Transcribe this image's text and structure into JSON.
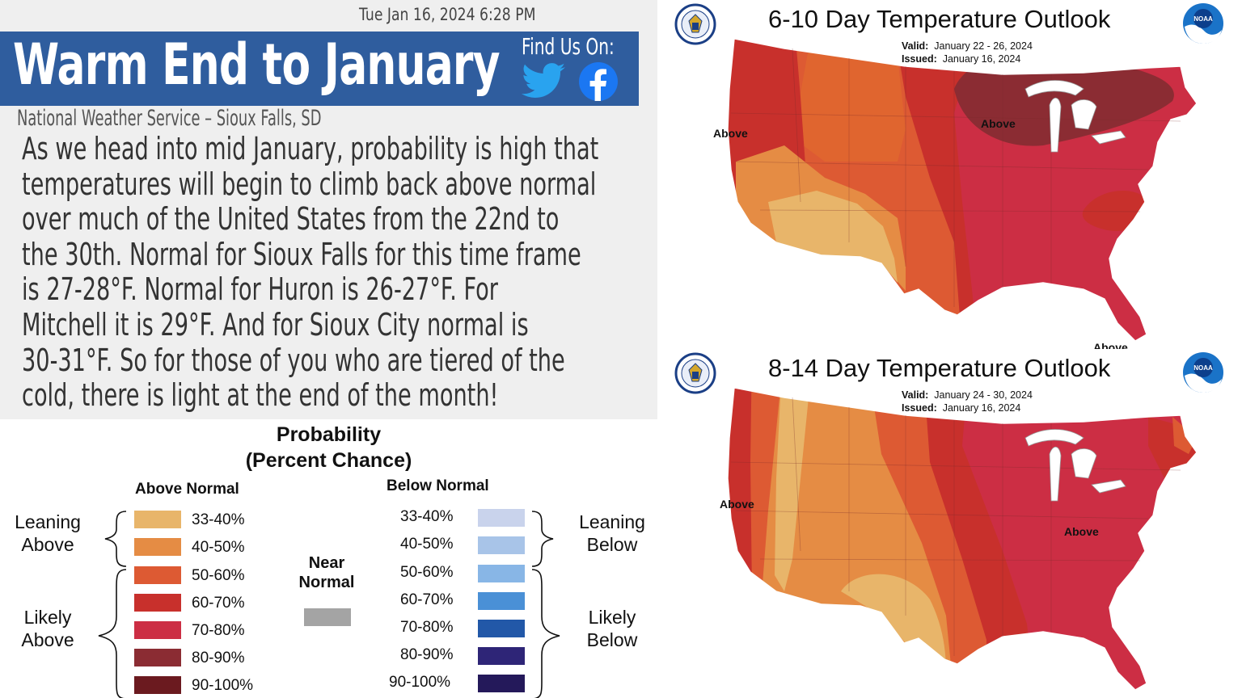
{
  "header": {
    "timestamp": "Tue Jan 16, 2024 6:28 PM",
    "title": "Warm End to January",
    "find_us": "Find Us On:",
    "organization": "National Weather Service – Sioux Falls, SD",
    "social_icons": [
      "twitter-icon",
      "facebook-icon"
    ],
    "banner_color": "#2f5d9e"
  },
  "body_lines": [
    "As we head into mid January, probability is high that",
    "temperatures will begin to climb back above normal",
    "over much of the United States from the 22nd to",
    "the 30th. Normal for Sioux Falls for this time frame",
    "is 27-28°F. Normal for Huron is 26-27°F. For",
    "Mitchell it is 29°F. And for Sioux City normal is",
    "30-31°F. So for those of you who are tiered of the",
    "cold, there is light at the end of the month!"
  ],
  "legend": {
    "title_line1": "Probability",
    "title_line2": "(Percent Chance)",
    "above_header": "Above Normal",
    "below_header": "Below Normal",
    "near_normal_line1": "Near",
    "near_normal_line2": "Normal",
    "near_normal_color": "#a4a4a4",
    "leaning_above": [
      "Leaning",
      "Above"
    ],
    "likely_above": [
      "Likely",
      "Above"
    ],
    "leaning_below": [
      "Leaning",
      "Below"
    ],
    "likely_below": [
      "Likely",
      "Below"
    ],
    "above": [
      {
        "label": "33-40%",
        "color": "#e8b56a"
      },
      {
        "label": "40-50%",
        "color": "#e58c44"
      },
      {
        "label": "50-60%",
        "color": "#dd5a33"
      },
      {
        "label": "60-70%",
        "color": "#c8302c"
      },
      {
        "label": "70-80%",
        "color": "#cc2e44"
      },
      {
        "label": "80-90%",
        "color": "#8b2c33"
      },
      {
        "label": "90-100%",
        "color": "#6b1a1f"
      }
    ],
    "below": [
      {
        "label": "33-40%",
        "color": "#c9d3ec"
      },
      {
        "label": "40-50%",
        "color": "#a8c4e8"
      },
      {
        "label": "50-60%",
        "color": "#88b6e6"
      },
      {
        "label": "60-70%",
        "color": "#4a90d6"
      },
      {
        "label": "70-80%",
        "color": "#2258a8"
      },
      {
        "label": "80-90%",
        "color": "#2e2577"
      },
      {
        "label": "90-100%",
        "color": "#24195a"
      }
    ]
  },
  "maps": [
    {
      "title": "6-10 Day Temperature Outlook",
      "valid_label": "Valid:",
      "valid": "January 22 - 26, 2024",
      "issued_label": "Issued:",
      "issued": "January 16, 2024",
      "label_west": "Above",
      "label_east": "Above",
      "label_south_partial": "Above"
    },
    {
      "title": "8-14 Day Temperature Outlook",
      "valid_label": "Valid:",
      "valid": "January 24 - 30, 2024",
      "issued_label": "Issued:",
      "issued": "January 16, 2024",
      "label_west": "Above",
      "label_east": "Above"
    }
  ],
  "logos": {
    "noaa_text": "NOAA"
  }
}
